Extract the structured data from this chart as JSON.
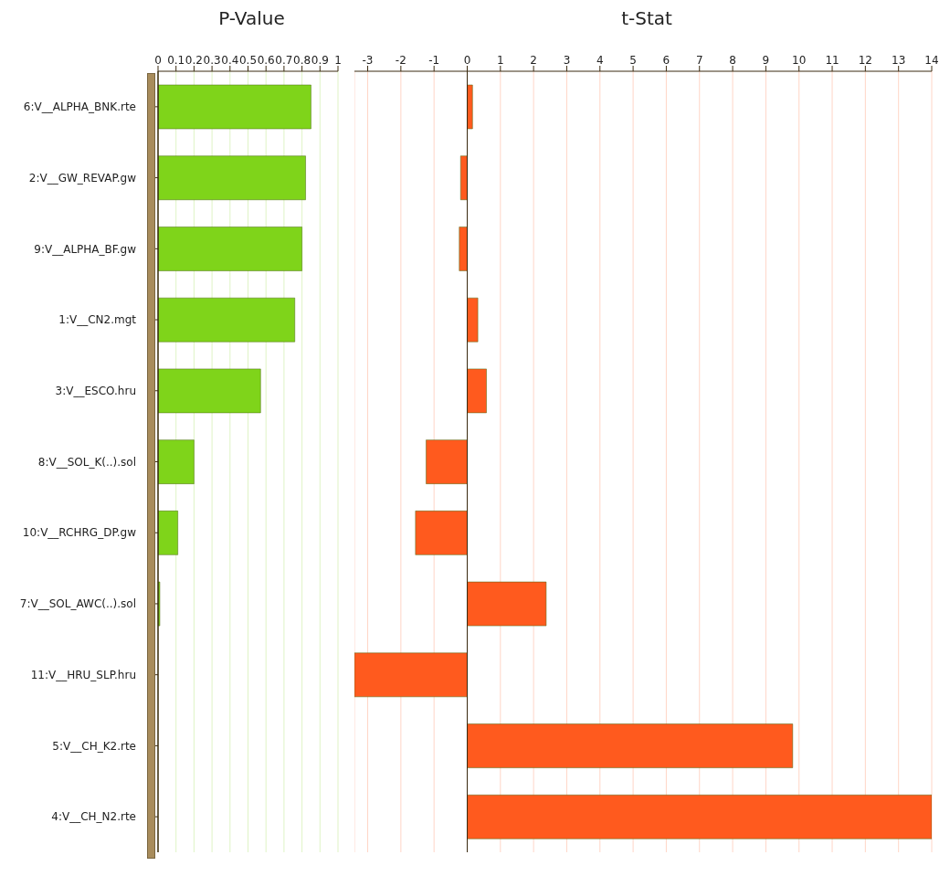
{
  "chart_data": [
    {
      "type": "bar",
      "orientation": "horizontal",
      "title": "P-Value",
      "categories": [
        "6:V__ALPHA_BNK.rte",
        "2:V__GW_REVAP.gw",
        "9:V__ALPHA_BF.gw",
        "1:V__CN2.mgt",
        "3:V__ESCO.hru",
        "8:V__SOL_K(..).sol",
        "10:V__RCHRG_DP.gw",
        "7:V__SOL_AWC(..).sol",
        "11:V__HRU_SLP.hru",
        "5:V__CH_K2.rte",
        "4:V__CH_N2.rte"
      ],
      "values": [
        0.85,
        0.82,
        0.8,
        0.76,
        0.57,
        0.2,
        0.11,
        0.01,
        0,
        0,
        0
      ],
      "color": "#7fd41a",
      "xlim": [
        0,
        1
      ],
      "xticks": [
        0,
        0.1,
        0.2,
        0.3,
        0.4,
        0.5,
        0.6,
        0.7,
        0.8,
        0.9,
        1
      ],
      "grid": "x"
    },
    {
      "type": "bar",
      "orientation": "horizontal",
      "title": "t-Stat",
      "categories": [
        null,
        null,
        null,
        null,
        null,
        null,
        null,
        null,
        null,
        null,
        null
      ],
      "values": [
        0.16,
        -0.2,
        -0.24,
        0.32,
        0.58,
        -1.24,
        -1.56,
        2.38,
        -3.4,
        9.81,
        14
      ],
      "color": "#ff5a1e",
      "xlim": [
        -3.4,
        14
      ],
      "xticks": [
        -3,
        -2,
        -1,
        0,
        1,
        2,
        3,
        4,
        5,
        6,
        7,
        8,
        9,
        10,
        11,
        12,
        13,
        14
      ],
      "grid": "x",
      "tick_labels": "x"
    }
  ]
}
